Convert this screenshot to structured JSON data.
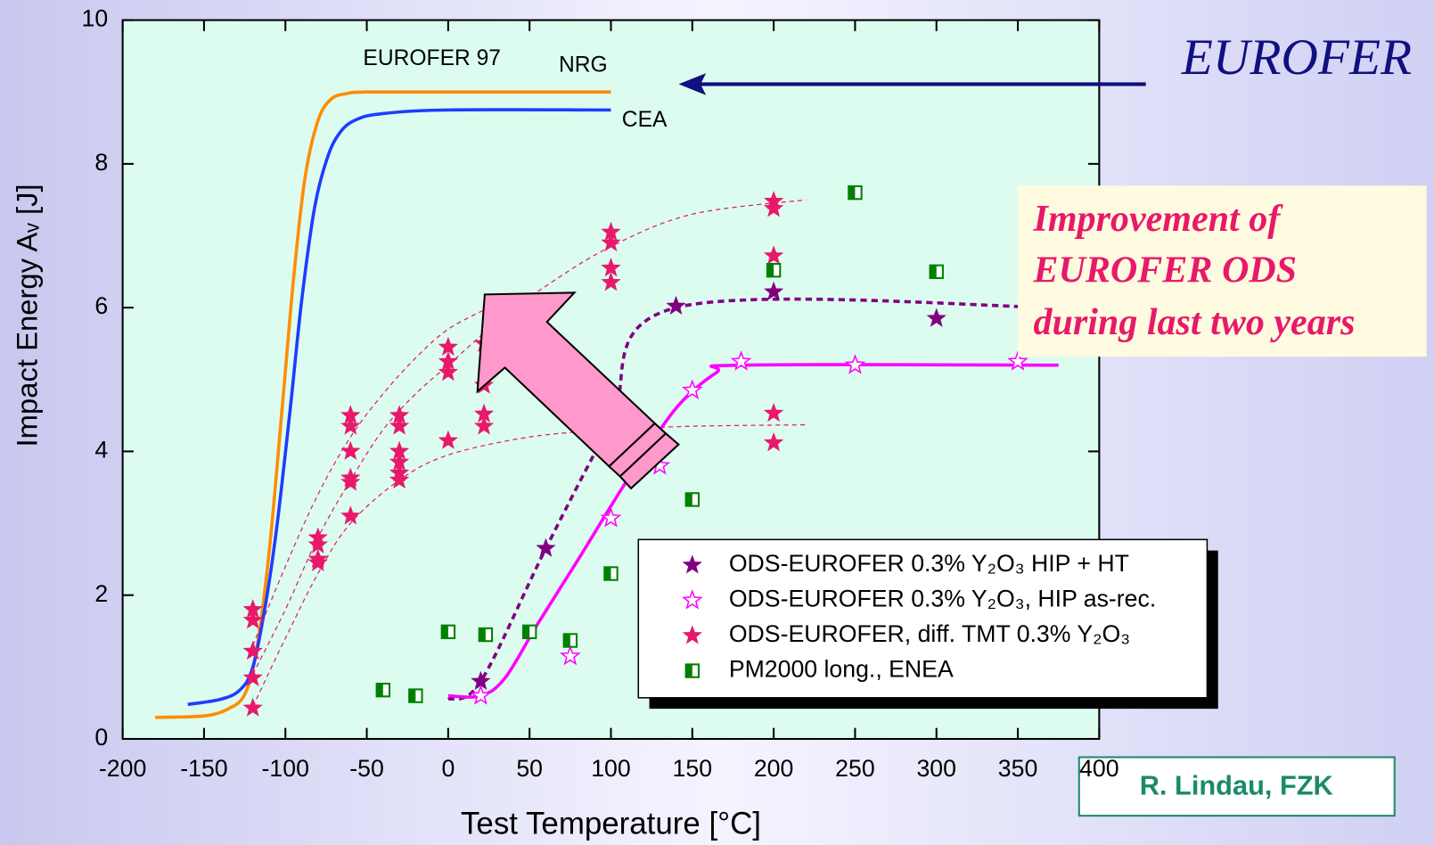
{
  "chart_data": {
    "type": "scatter",
    "xlabel": "Test Temperature [°C]",
    "ylabel": "Impact Energy Aᵥ [J]",
    "xlim": [
      -200,
      400
    ],
    "ylim": [
      0,
      10
    ],
    "xticks": [
      -200,
      -150,
      -100,
      -50,
      0,
      50,
      100,
      150,
      200,
      250,
      300,
      350,
      400
    ],
    "yticks": [
      0,
      2,
      4,
      6,
      8,
      10
    ],
    "annotations": [
      "EUROFER 97",
      "NRG",
      "CEA"
    ],
    "series": [
      {
        "type": "line",
        "color": "#ff8c00",
        "x": [
          -180,
          -150,
          -135,
          -125,
          -118,
          -110,
          -102,
          -95,
          -88,
          -80,
          -72,
          -62,
          -50,
          0,
          100
        ],
        "values": [
          0.3,
          0.32,
          0.42,
          0.62,
          1.2,
          2.6,
          4.6,
          6.4,
          7.8,
          8.6,
          8.9,
          8.98,
          9.0,
          9.0,
          9.0
        ]
      },
      {
        "type": "line",
        "color": "#1e3cff",
        "x": [
          -160,
          -140,
          -128,
          -120,
          -112,
          -105,
          -97,
          -90,
          -82,
          -74,
          -66,
          -56,
          -40,
          0,
          100
        ],
        "values": [
          0.48,
          0.55,
          0.68,
          1.0,
          1.9,
          3.0,
          4.6,
          6.1,
          7.4,
          8.1,
          8.45,
          8.62,
          8.7,
          8.75,
          8.75
        ]
      },
      {
        "type": "line",
        "color": "#e8186a",
        "dash": true,
        "thin": true,
        "x": [
          -120,
          -100,
          -80,
          -60,
          -40,
          -20,
          0,
          30,
          60,
          100,
          150,
          220
        ],
        "values": [
          0.9,
          1.8,
          2.8,
          3.6,
          4.3,
          4.8,
          5.2,
          5.8,
          6.3,
          6.85,
          7.3,
          7.5
        ]
      },
      {
        "type": "line",
        "color": "#e8186a",
        "dash": true,
        "thin": true,
        "x": [
          -120,
          -100,
          -80,
          -60,
          -40,
          -20,
          0,
          25
        ],
        "values": [
          1.3,
          2.4,
          3.4,
          4.2,
          4.8,
          5.3,
          5.7,
          6.0
        ]
      },
      {
        "type": "line",
        "color": "#e8186a",
        "dash": true,
        "thin": true,
        "x": [
          -120,
          -100,
          -80,
          -60,
          -30,
          0,
          50,
          100,
          150,
          220
        ],
        "values": [
          0.45,
          1.4,
          2.3,
          3.0,
          3.6,
          3.95,
          4.2,
          4.3,
          4.35,
          4.37
        ]
      },
      {
        "type": "line",
        "color": "#800080",
        "dash": true,
        "x": [
          0,
          20,
          60,
          100,
          140,
          375
        ],
        "values": [
          0.55,
          0.8,
          2.65,
          4.4,
          6.0,
          6.0
        ]
      },
      {
        "type": "line",
        "color": "#ff00ff",
        "x": [
          0,
          20,
          35,
          55,
          80,
          110,
          140,
          165,
          180,
          375
        ],
        "values": [
          0.6,
          0.6,
          0.85,
          1.6,
          2.5,
          3.6,
          4.6,
          5.1,
          5.2,
          5.2
        ]
      },
      {
        "type": "scatter",
        "name": "ODS-EUROFER 0.3% Y₂O₃ HIP + HT",
        "marker": "star",
        "color": "#800080",
        "x": [
          20,
          60,
          140,
          200,
          300
        ],
        "values": [
          0.8,
          2.65,
          6.02,
          6.22,
          5.85
        ]
      },
      {
        "type": "scatter",
        "name": "ODS-EUROFER 0.3% Y₂O₃, HIP as-rec.",
        "marker": "hollow-star",
        "color": "#ff00ff",
        "x": [
          20,
          75,
          100,
          130,
          150,
          180,
          250,
          350
        ],
        "values": [
          0.6,
          1.15,
          3.07,
          3.8,
          4.85,
          5.25,
          5.2,
          5.25
        ]
      },
      {
        "type": "scatter",
        "name": "ODS-EUROFER, diff. TMT 0.3% Y₂O₃",
        "marker": "star",
        "color": "#e8186a",
        "x": [
          -120,
          -120,
          -120,
          -120,
          -120,
          -80,
          -80,
          -80,
          -80,
          -60,
          -60,
          -60,
          -60,
          -60,
          -60,
          -30,
          -30,
          -30,
          -30,
          -30,
          -30,
          0,
          0,
          0,
          0,
          22,
          22,
          22,
          22,
          100,
          100,
          100,
          100,
          200,
          200,
          200,
          200,
          200
        ],
        "values": [
          1.8,
          1.65,
          1.22,
          0.85,
          0.43,
          2.8,
          2.7,
          2.5,
          2.45,
          4.5,
          4.35,
          4.0,
          3.63,
          3.57,
          3.1,
          4.5,
          4.35,
          4.0,
          3.85,
          3.7,
          3.6,
          5.45,
          5.25,
          5.1,
          4.15,
          5.5,
          4.92,
          4.52,
          4.35,
          7.05,
          6.9,
          6.55,
          6.35,
          7.48,
          7.38,
          6.72,
          4.53,
          4.12
        ]
      },
      {
        "type": "scatter",
        "name": "PM2000 long., ENEA",
        "marker": "half-square",
        "color": "#008000",
        "x": [
          -40,
          -20,
          0,
          23,
          50,
          75,
          100,
          150,
          200,
          250,
          300
        ],
        "values": [
          0.68,
          0.6,
          1.49,
          1.45,
          1.49,
          1.37,
          2.3,
          3.33,
          6.52,
          7.6,
          6.5
        ]
      }
    ]
  },
  "callouts": {
    "eurofer": "EUROFER",
    "improvement": [
      "Improvement of",
      "EUROFER ODS",
      "during last two years"
    ],
    "author": "R. Lindau, FZK"
  }
}
